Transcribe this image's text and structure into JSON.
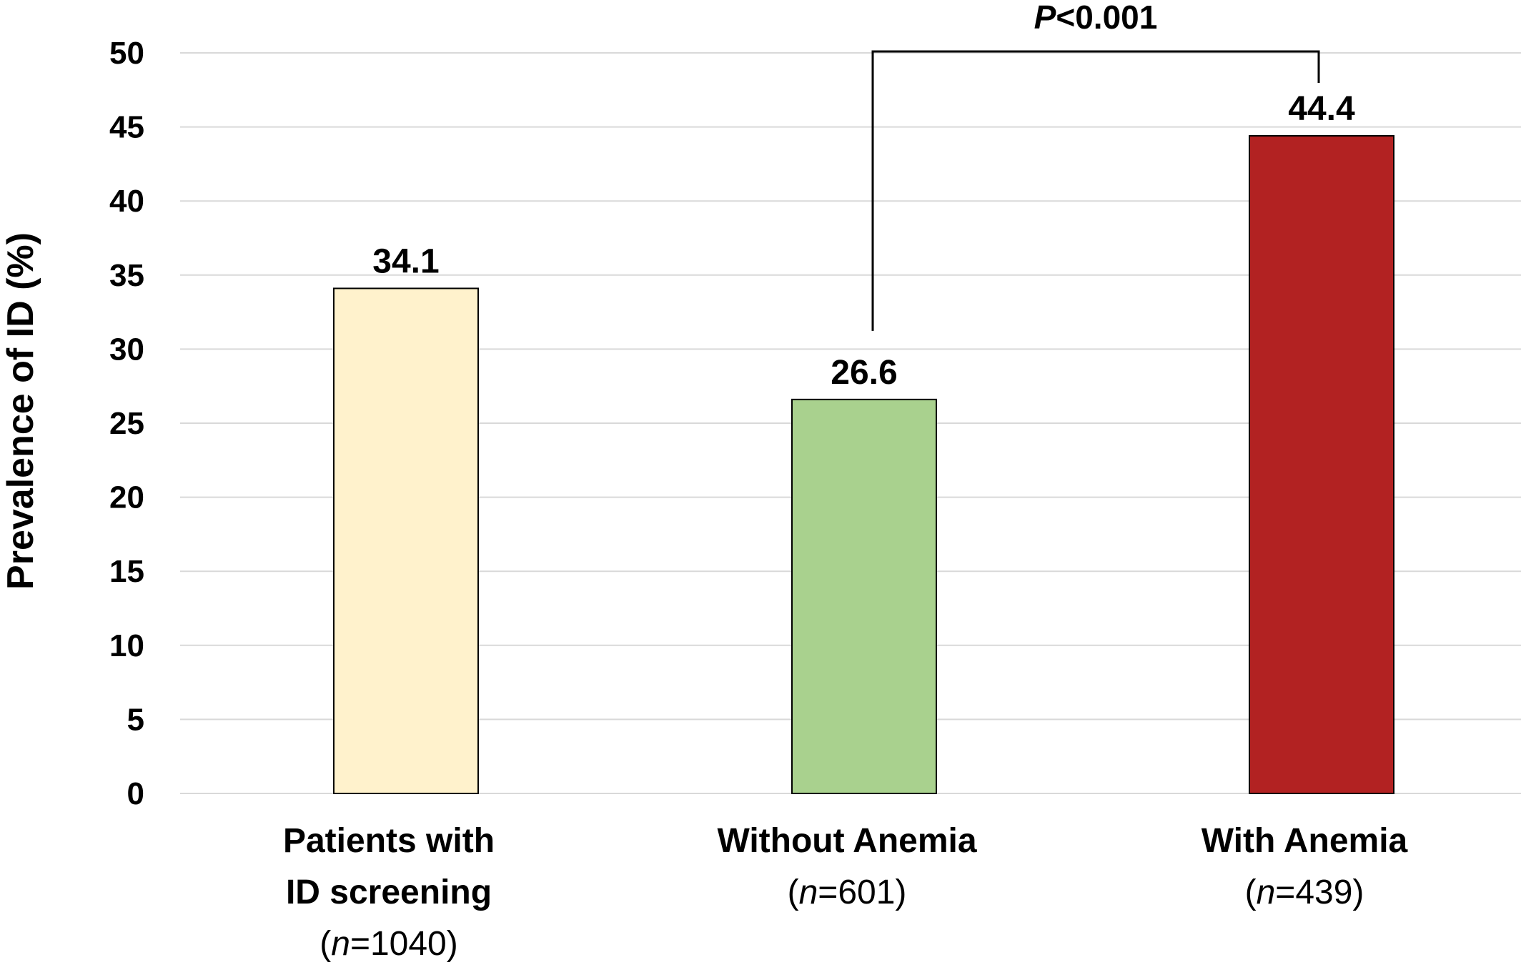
{
  "chart_data": {
    "type": "bar",
    "categories": [
      {
        "lines": [
          "Patients with",
          "ID screening"
        ],
        "n_prefix": "(",
        "n_var": "n",
        "n_rest": "=1040)"
      },
      {
        "lines": [
          "Without Anemia"
        ],
        "n_prefix": "(",
        "n_var": "n",
        "n_rest": "=601)"
      },
      {
        "lines": [
          "With Anemia"
        ],
        "n_prefix": "(",
        "n_var": "n",
        "n_rest": "=439)"
      }
    ],
    "values": [
      34.1,
      26.6,
      44.4
    ],
    "value_labels": [
      "34.1",
      "26.6",
      "44.4"
    ],
    "colors": [
      "#FFF2CC",
      "#A9D18E",
      "#B22222"
    ],
    "ylabel": "Prevalence of ID (%)",
    "ylim": [
      0,
      50
    ],
    "yticks": [
      0,
      5,
      10,
      15,
      20,
      25,
      30,
      35,
      40,
      45,
      50
    ],
    "grid": true,
    "significance": {
      "between": [
        1,
        2
      ],
      "label_italic": "P",
      "label_rest": "<0.001"
    }
  }
}
